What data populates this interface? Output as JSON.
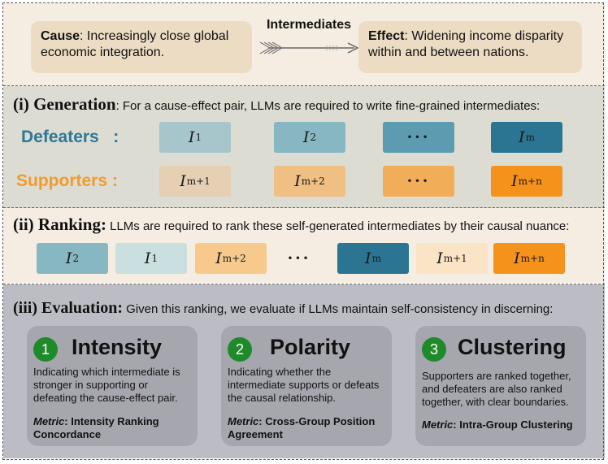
{
  "top": {
    "cause_label": "Cause",
    "cause_text": ": Increasingly close global economic integration.",
    "intermediates_label": "Intermediates",
    "effect_label": "Effect",
    "effect_text": ": Widening income disparity within and between nations."
  },
  "generation": {
    "heading": "(i) Generation",
    "text": ": For a cause-effect pair, LLMs are required to write fine-grained intermediates:",
    "defeaters_label": "Defeaters   :",
    "supporters_label": "Supporters :",
    "defeaters": [
      {
        "sym": "I",
        "sub": "1",
        "color": "#a7c6cc"
      },
      {
        "sym": "I",
        "sub": "2",
        "color": "#88b7c4"
      },
      {
        "sym": "",
        "sub": "",
        "dots": "···",
        "color": "#5d9bb0"
      },
      {
        "sym": "I",
        "sub": "m",
        "color": "#2b7592"
      }
    ],
    "supporters": [
      {
        "sym": "I",
        "sub": "m+1",
        "color": "#e6d0b4"
      },
      {
        "sym": "I",
        "sub": "m+2",
        "color": "#efbf84"
      },
      {
        "sym": "",
        "sub": "",
        "dots": "···",
        "color": "#f2ad59"
      },
      {
        "sym": "I",
        "sub": "m+n",
        "color": "#f5921c"
      }
    ]
  },
  "ranking": {
    "heading": "(ii) Ranking:",
    "text": " LLMs are required to rank these self-generated intermediates by their causal nuance:",
    "items": [
      {
        "sym": "I",
        "sub": "2",
        "color": "#88b7c4"
      },
      {
        "sym": "I",
        "sub": "1",
        "color": "#c9dfe0"
      },
      {
        "sym": "I",
        "sub": "m+2",
        "color": "#f8c98d"
      },
      {
        "sym": "",
        "sub": "",
        "dots": "···",
        "color": "transparent"
      },
      {
        "sym": "I",
        "sub": "m",
        "color": "#2b7592"
      },
      {
        "sym": "I",
        "sub": "m+1",
        "color": "#fbe3c6"
      },
      {
        "sym": "I",
        "sub": "m+n",
        "color": "#f5921c"
      }
    ]
  },
  "evaluation": {
    "heading": "(iii) Evaluation:",
    "text": " Given this ranking, we evaluate if LLMs maintain self-consistency in discerning:",
    "cards": [
      {
        "num": "1",
        "title": "Intensity",
        "desc": "Indicating which intermediate is stronger in supporting or defeating the cause-effect pair.",
        "metric_label": "Metric",
        "metric_text": ": Intensity Ranking Concordance"
      },
      {
        "num": "2",
        "title": "Polarity",
        "desc": "Indicating whether the intermediate supports or defeats the causal relationship.",
        "metric_label": "Metric",
        "metric_text": ": Cross-Group Position Agreement"
      },
      {
        "num": "3",
        "title": "Clustering",
        "desc": "Supporters are ranked together, and defeaters are also ranked together, with clear boundaries.",
        "metric_label": "Metric",
        "metric_text": ": Intra-Group Clustering"
      }
    ]
  }
}
